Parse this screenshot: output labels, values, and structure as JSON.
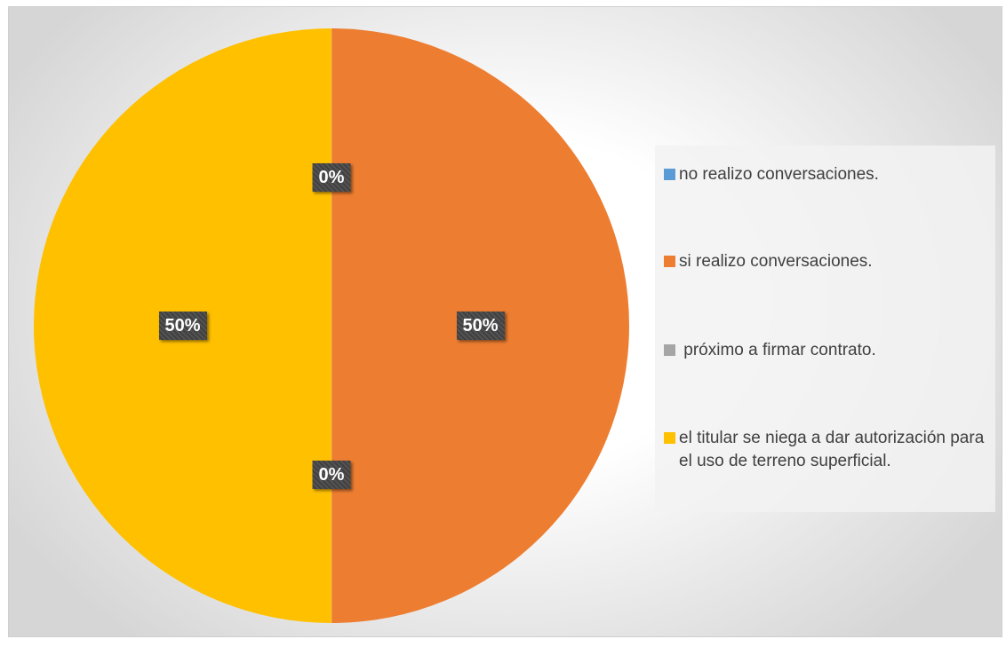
{
  "chart_data": {
    "type": "pie",
    "categories": [
      "no realizo conversaciones.",
      "si realizo conversaciones.",
      " próximo a firmar contrato.",
      "el titular se niega a dar autorización para el uso de terreno superficial."
    ],
    "values": [
      0,
      50,
      0,
      50
    ],
    "data_labels": [
      "0%",
      "50%",
      "0%",
      "50%"
    ],
    "colors": [
      "#5B9BD5",
      "#ED7D31",
      "#A5A5A5",
      "#FFC000"
    ],
    "legend_position": "right",
    "start_angle": "12 o'clock, clockwise"
  }
}
